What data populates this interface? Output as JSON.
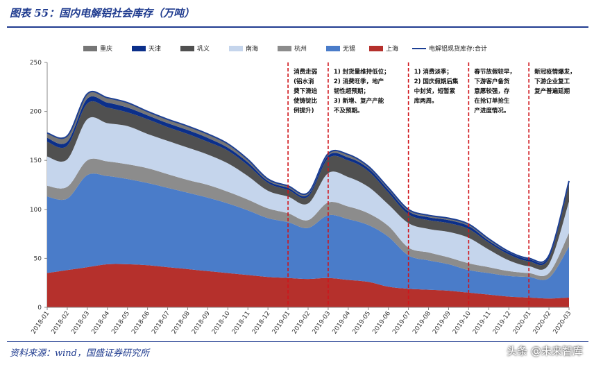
{
  "header": {
    "title": "图表 55：国内电解铝社会库存（万吨）"
  },
  "footer": {
    "source": "资料来源：wind，国盛证券研究所",
    "watermark": "头条 @未来智库"
  },
  "chart_data": {
    "type": "area",
    "title": "",
    "xlabel": "",
    "ylabel": "",
    "ylim": [
      0,
      250
    ],
    "yticks": [
      0,
      50,
      100,
      150,
      200,
      250
    ],
    "x_tick_labels": [
      "2018-01",
      "2018-02",
      "2018-03",
      "2018-04",
      "2018-05",
      "2018-06",
      "2018-07",
      "2018-08",
      "2018-09",
      "2018-10",
      "2018-11",
      "2018-12",
      "2019-01",
      "2019-02",
      "2019-03",
      "2019-04",
      "2019-05",
      "2019-06",
      "2019-07",
      "2019-08",
      "2019-09",
      "2019-10",
      "2019-11",
      "2019-12",
      "2020-01",
      "2020-02",
      "2020-03"
    ],
    "x": [
      "2018-01",
      "2018-02",
      "2018-03",
      "2018-04",
      "2018-05",
      "2018-06",
      "2018-07",
      "2018-08",
      "2018-09",
      "2018-10",
      "2018-11",
      "2018-12",
      "2019-01",
      "2019-02",
      "2019-03",
      "2019-04",
      "2019-05",
      "2019-06",
      "2019-07",
      "2019-08",
      "2019-09",
      "2019-10",
      "2019-11",
      "2019-12",
      "2020-01",
      "2020-02",
      "2020-03"
    ],
    "stack_order": [
      "上海",
      "无锡",
      "杭州",
      "南海",
      "巩义",
      "天津",
      "重庆"
    ],
    "series": [
      {
        "name": "上海",
        "color": "#b5302c",
        "values": [
          35,
          38,
          41,
          44,
          44,
          43,
          41,
          39,
          37,
          35,
          33,
          31,
          30,
          29,
          30,
          28,
          26,
          21,
          19,
          18,
          17,
          15,
          13,
          11,
          10,
          9,
          10
        ]
      },
      {
        "name": "无锡",
        "color": "#4a7cc9",
        "values": [
          78,
          73,
          94,
          90,
          87,
          84,
          81,
          78,
          75,
          71,
          66,
          60,
          57,
          52,
          64,
          62,
          58,
          51,
          34,
          30,
          27,
          23,
          22,
          21,
          21,
          21,
          52
        ]
      },
      {
        "name": "杭州",
        "color": "#8c8c8c",
        "values": [
          11,
          12,
          15,
          15,
          15,
          15,
          14,
          13,
          13,
          12,
          11,
          10,
          9,
          8,
          13,
          13,
          12,
          11,
          8,
          8,
          7,
          7,
          6,
          5,
          4,
          5,
          14
        ]
      },
      {
        "name": "南海",
        "color": "#c5d5ec",
        "values": [
          30,
          28,
          42,
          39,
          39,
          35,
          34,
          33,
          31,
          29,
          24,
          18,
          17,
          17,
          30,
          30,
          27,
          22,
          25,
          24,
          26,
          26,
          18,
          11,
          7,
          9,
          32
        ]
      },
      {
        "name": "巩义",
        "color": "#505050",
        "values": [
          15,
          14,
          16,
          16,
          14,
          15,
          14,
          14,
          13,
          13,
          11,
          8,
          7,
          7,
          15,
          17,
          16,
          12,
          9,
          9,
          9,
          9,
          7,
          6,
          5,
          6,
          18
        ]
      },
      {
        "name": "天津",
        "color": "#0b2f8a",
        "values": [
          4,
          4,
          5,
          5,
          5,
          4,
          4,
          4,
          4,
          3,
          3,
          2,
          2,
          2,
          3,
          3,
          3,
          3,
          3,
          3,
          3,
          3,
          2,
          2,
          2,
          2,
          2
        ]
      },
      {
        "name": "重庆",
        "color": "#767676",
        "values": [
          5,
          6,
          5,
          5,
          5,
          4,
          4,
          4,
          4,
          4,
          3,
          2,
          2,
          2,
          2,
          3,
          2,
          2,
          2,
          2,
          2,
          2,
          2,
          1,
          1,
          1,
          1
        ]
      }
    ],
    "total_line": {
      "name": "电解铝现货库存:合计",
      "color": "#1c3f94",
      "values": [
        178,
        175,
        218,
        214,
        209,
        200,
        192,
        185,
        177,
        167,
        151,
        131,
        124,
        117,
        157,
        156,
        144,
        122,
        100,
        94,
        91,
        85,
        70,
        57,
        50,
        53,
        129
      ]
    },
    "legend": {
      "position": "top",
      "items": [
        "重庆",
        "天津",
        "巩义",
        "南海",
        "杭州",
        "无锡",
        "上海",
        "电解铝现货库存:合计"
      ]
    },
    "vlines": [
      "2019-01",
      "2019-03",
      "2019-07",
      "2019-10",
      "2020-01"
    ],
    "annotations": [
      {
        "anchor": "2019-01",
        "lines": [
          "消费走弱",
          "(铝水消",
          "费下滑迫",
          "使铸锭比",
          "例提升)"
        ]
      },
      {
        "anchor": "2019-03",
        "lines": [
          "1) 封货量维持低位；",
          "2) 消费旺季，地产",
          "韧性超预期；",
          "3) 新增、复产产能",
          "不及预期。"
        ]
      },
      {
        "anchor": "2019-07",
        "lines": [
          "1) 消费淡季；",
          "2) 国庆假期后集",
          "中封货，短暂累",
          "库两周。"
        ]
      },
      {
        "anchor": "2019-10",
        "lines": [
          "春节放假较早，",
          "下游客户备货",
          "意愿较强，存",
          "在抢订单抢生",
          "产进度情况。"
        ]
      },
      {
        "anchor": "2020-01",
        "lines": [
          "新冠疫情爆发，",
          "下游企业复工",
          "复产普遍延期"
        ]
      }
    ],
    "grid": false
  }
}
